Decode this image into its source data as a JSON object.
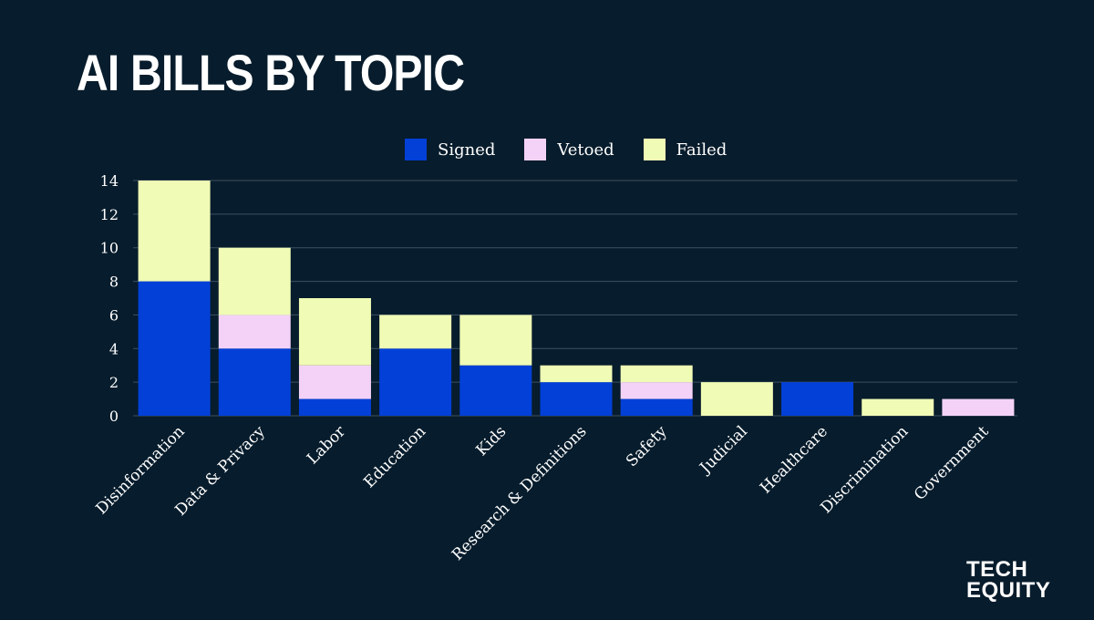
{
  "title": "AI BILLS BY TOPIC",
  "logo": {
    "line1": "TECH",
    "line2": "EQUITY"
  },
  "colors": {
    "background": "#071c2c",
    "signed": "#0340d8",
    "vetoed": "#f4d2f7",
    "failed": "#f0fbb5",
    "grid": "#3c5061",
    "text": "#ffffff"
  },
  "legend": [
    {
      "name": "Signed",
      "color": "#0340d8"
    },
    {
      "name": "Vetoed",
      "color": "#f4d2f7"
    },
    {
      "name": "Failed",
      "color": "#f0fbb5"
    }
  ],
  "chart_data": {
    "type": "bar",
    "stacked": true,
    "title": "AI BILLS BY TOPIC",
    "xlabel": "",
    "ylabel": "",
    "ylim": [
      0,
      14
    ],
    "yticks": [
      0,
      2,
      4,
      6,
      8,
      10,
      12,
      14
    ],
    "grid": true,
    "legend_position": "top",
    "categories": [
      "Disinformation",
      "Data & Privacy",
      "Labor",
      "Education",
      "Kids",
      "Research & Definitions",
      "Safety",
      "Judicial",
      "Healthcare",
      "Discrimination",
      "Government"
    ],
    "series": [
      {
        "name": "Signed",
        "color": "#0340d8",
        "values": [
          8,
          4,
          1,
          4,
          3,
          2,
          1,
          0,
          2,
          0,
          0
        ]
      },
      {
        "name": "Vetoed",
        "color": "#f4d2f7",
        "values": [
          0,
          2,
          2,
          0,
          0,
          0,
          1,
          0,
          0,
          0,
          1
        ]
      },
      {
        "name": "Failed",
        "color": "#f0fbb5",
        "values": [
          6,
          4,
          4,
          2,
          3,
          1,
          1,
          2,
          0,
          1,
          0
        ]
      }
    ]
  }
}
